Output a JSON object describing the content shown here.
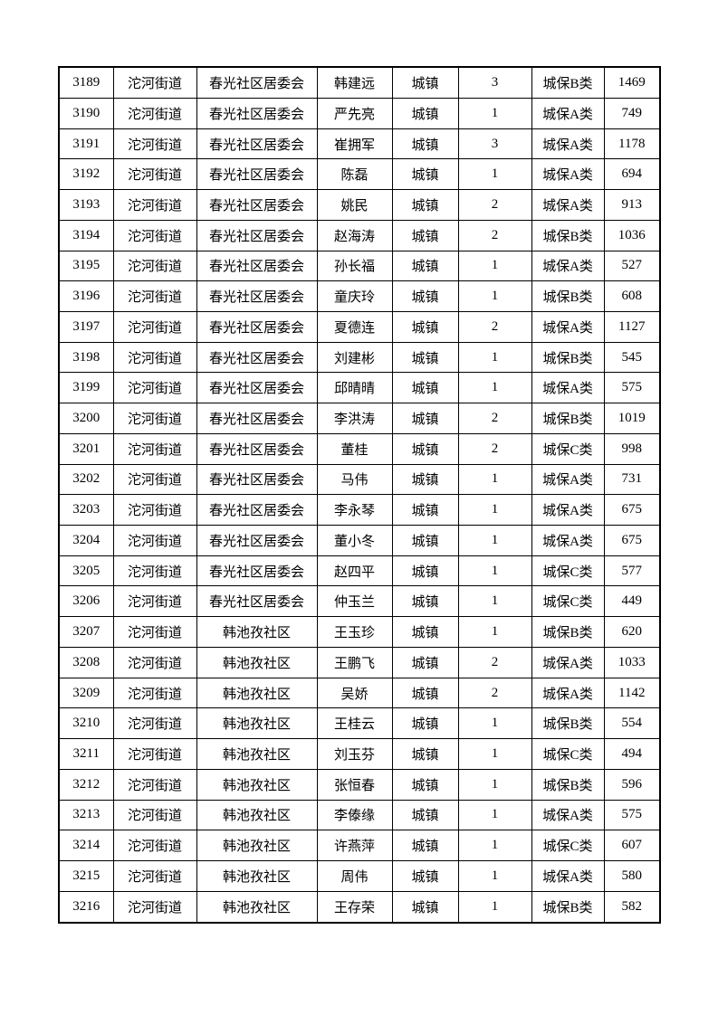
{
  "page": {
    "background_color": "#ffffff",
    "text_color": "#000000",
    "border_color": "#000000"
  },
  "table": {
    "column_names": [
      "serial-number",
      "street",
      "community",
      "person-name",
      "household-type",
      "count",
      "insurance-category",
      "amount"
    ],
    "rows": [
      [
        "3189",
        "沱河街道",
        "春光社区居委会",
        "韩建远",
        "城镇",
        "3",
        "城保B类",
        "1469"
      ],
      [
        "3190",
        "沱河街道",
        "春光社区居委会",
        "严先亮",
        "城镇",
        "1",
        "城保A类",
        "749"
      ],
      [
        "3191",
        "沱河街道",
        "春光社区居委会",
        "崔拥军",
        "城镇",
        "3",
        "城保A类",
        "1178"
      ],
      [
        "3192",
        "沱河街道",
        "春光社区居委会",
        "陈磊",
        "城镇",
        "1",
        "城保A类",
        "694"
      ],
      [
        "3193",
        "沱河街道",
        "春光社区居委会",
        "姚民",
        "城镇",
        "2",
        "城保A类",
        "913"
      ],
      [
        "3194",
        "沱河街道",
        "春光社区居委会",
        "赵海涛",
        "城镇",
        "2",
        "城保B类",
        "1036"
      ],
      [
        "3195",
        "沱河街道",
        "春光社区居委会",
        "孙长福",
        "城镇",
        "1",
        "城保A类",
        "527"
      ],
      [
        "3196",
        "沱河街道",
        "春光社区居委会",
        "童庆玲",
        "城镇",
        "1",
        "城保B类",
        "608"
      ],
      [
        "3197",
        "沱河街道",
        "春光社区居委会",
        "夏德连",
        "城镇",
        "2",
        "城保A类",
        "1127"
      ],
      [
        "3198",
        "沱河街道",
        "春光社区居委会",
        "刘建彬",
        "城镇",
        "1",
        "城保B类",
        "545"
      ],
      [
        "3199",
        "沱河街道",
        "春光社区居委会",
        "邱晴晴",
        "城镇",
        "1",
        "城保A类",
        "575"
      ],
      [
        "3200",
        "沱河街道",
        "春光社区居委会",
        "李洪涛",
        "城镇",
        "2",
        "城保B类",
        "1019"
      ],
      [
        "3201",
        "沱河街道",
        "春光社区居委会",
        "董桂",
        "城镇",
        "2",
        "城保C类",
        "998"
      ],
      [
        "3202",
        "沱河街道",
        "春光社区居委会",
        "马伟",
        "城镇",
        "1",
        "城保A类",
        "731"
      ],
      [
        "3203",
        "沱河街道",
        "春光社区居委会",
        "李永琴",
        "城镇",
        "1",
        "城保A类",
        "675"
      ],
      [
        "3204",
        "沱河街道",
        "春光社区居委会",
        "董小冬",
        "城镇",
        "1",
        "城保A类",
        "675"
      ],
      [
        "3205",
        "沱河街道",
        "春光社区居委会",
        "赵四平",
        "城镇",
        "1",
        "城保C类",
        "577"
      ],
      [
        "3206",
        "沱河街道",
        "春光社区居委会",
        "仲玉兰",
        "城镇",
        "1",
        "城保C类",
        "449"
      ],
      [
        "3207",
        "沱河街道",
        "韩池孜社区",
        "王玉珍",
        "城镇",
        "1",
        "城保B类",
        "620"
      ],
      [
        "3208",
        "沱河街道",
        "韩池孜社区",
        "王鹏飞",
        "城镇",
        "2",
        "城保A类",
        "1033"
      ],
      [
        "3209",
        "沱河街道",
        "韩池孜社区",
        "吴娇",
        "城镇",
        "2",
        "城保A类",
        "1142"
      ],
      [
        "3210",
        "沱河街道",
        "韩池孜社区",
        "王桂云",
        "城镇",
        "1",
        "城保B类",
        "554"
      ],
      [
        "3211",
        "沱河街道",
        "韩池孜社区",
        "刘玉芬",
        "城镇",
        "1",
        "城保C类",
        "494"
      ],
      [
        "3212",
        "沱河街道",
        "韩池孜社区",
        "张恒春",
        "城镇",
        "1",
        "城保B类",
        "596"
      ],
      [
        "3213",
        "沱河街道",
        "韩池孜社区",
        "李傣缘",
        "城镇",
        "1",
        "城保A类",
        "575"
      ],
      [
        "3214",
        "沱河街道",
        "韩池孜社区",
        "许燕萍",
        "城镇",
        "1",
        "城保C类",
        "607"
      ],
      [
        "3215",
        "沱河街道",
        "韩池孜社区",
        "周伟",
        "城镇",
        "1",
        "城保A类",
        "580"
      ],
      [
        "3216",
        "沱河街道",
        "韩池孜社区",
        "王存荣",
        "城镇",
        "1",
        "城保B类",
        "582"
      ]
    ]
  }
}
